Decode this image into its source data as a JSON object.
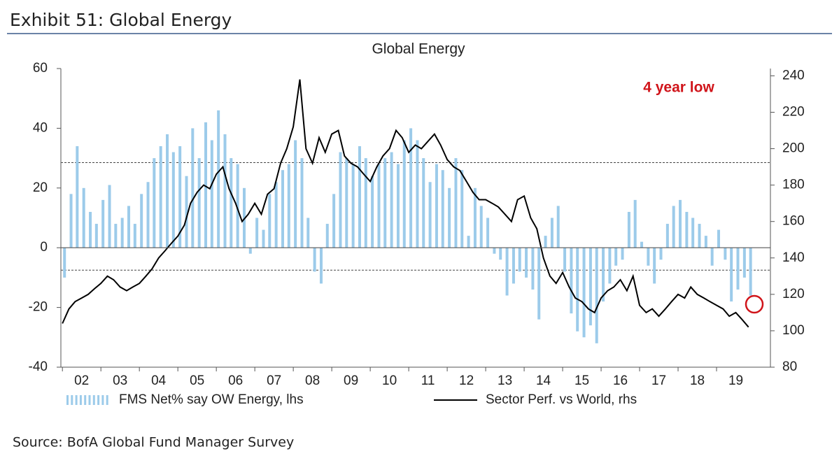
{
  "header": "Exhibit 51: Global Energy",
  "source": "Source: BofA Global Fund Manager Survey",
  "chart_data": {
    "type": "bar_line",
    "title": "Global Energy",
    "annotation": "4 year low",
    "xlim": [
      2001.96,
      2020.4
    ],
    "xticks": [
      {
        "value": 2002,
        "label": "02"
      },
      {
        "value": 2003,
        "label": "03"
      },
      {
        "value": 2004,
        "label": "04"
      },
      {
        "value": 2005,
        "label": "05"
      },
      {
        "value": 2006,
        "label": "06"
      },
      {
        "value": 2007,
        "label": "07"
      },
      {
        "value": 2008,
        "label": "08"
      },
      {
        "value": 2009,
        "label": "09"
      },
      {
        "value": 2010,
        "label": "10"
      },
      {
        "value": 2011,
        "label": "11"
      },
      {
        "value": 2012,
        "label": "12"
      },
      {
        "value": 2013,
        "label": "13"
      },
      {
        "value": 2014,
        "label": "14"
      },
      {
        "value": 2015,
        "label": "15"
      },
      {
        "value": 2016,
        "label": "16"
      },
      {
        "value": 2017,
        "label": "17"
      },
      {
        "value": 2018,
        "label": "18"
      },
      {
        "value": 2019,
        "label": "19"
      }
    ],
    "ylim": [
      -40,
      60
    ],
    "yticks": [
      -40,
      -20,
      0,
      20,
      40,
      60
    ],
    "y2lim": [
      80,
      244
    ],
    "y2ticks": [
      80,
      100,
      120,
      140,
      160,
      180,
      200,
      220,
      240
    ],
    "reference_lines": [
      28.5,
      -7.5
    ],
    "x": [
      2002,
      2002.17,
      2002.33,
      2002.5,
      2002.67,
      2002.83,
      2003,
      2003.17,
      2003.33,
      2003.5,
      2003.67,
      2003.83,
      2004,
      2004.17,
      2004.33,
      2004.5,
      2004.67,
      2004.83,
      2005,
      2005.17,
      2005.33,
      2005.5,
      2005.67,
      2005.83,
      2006,
      2006.17,
      2006.33,
      2006.5,
      2006.67,
      2006.83,
      2007,
      2007.17,
      2007.33,
      2007.5,
      2007.67,
      2007.83,
      2008,
      2008.17,
      2008.33,
      2008.5,
      2008.67,
      2008.83,
      2009,
      2009.17,
      2009.33,
      2009.5,
      2009.67,
      2009.83,
      2010,
      2010.17,
      2010.33,
      2010.5,
      2010.67,
      2010.83,
      2011,
      2011.17,
      2011.33,
      2011.5,
      2011.67,
      2011.83,
      2012,
      2012.17,
      2012.33,
      2012.5,
      2012.67,
      2012.83,
      2013,
      2013.17,
      2013.33,
      2013.5,
      2013.67,
      2013.83,
      2014,
      2014.17,
      2014.33,
      2014.5,
      2014.67,
      2014.83,
      2015,
      2015.17,
      2015.33,
      2015.5,
      2015.67,
      2015.83,
      2016,
      2016.17,
      2016.33,
      2016.5,
      2016.67,
      2016.83,
      2017,
      2017.17,
      2017.33,
      2017.5,
      2017.67,
      2017.83,
      2018,
      2018.17,
      2018.33,
      2018.5,
      2018.67,
      2018.83,
      2019,
      2019.17,
      2019.33,
      2019.5,
      2019.67,
      2019.83
    ],
    "series": [
      {
        "name": "FMS Net% say OW Energy, lhs",
        "kind": "bar",
        "color": "#9ccbea",
        "values": [
          -10,
          18,
          34,
          20,
          12,
          8,
          16,
          21,
          8,
          10,
          14,
          8,
          18,
          22,
          30,
          34,
          38,
          32,
          34,
          24,
          40,
          30,
          42,
          36,
          46,
          38,
          30,
          28,
          20,
          -2,
          10,
          6,
          18,
          22,
          26,
          28,
          36,
          30,
          10,
          -8,
          -12,
          8,
          18,
          32,
          30,
          28,
          34,
          30,
          24,
          28,
          30,
          32,
          28,
          36,
          40,
          36,
          30,
          22,
          28,
          26,
          20,
          30,
          26,
          4,
          20,
          14,
          10,
          -2,
          -4,
          -16,
          -12,
          -8,
          -10,
          -14,
          -24,
          4,
          10,
          14,
          -8,
          -22,
          -28,
          -30,
          -26,
          -32,
          -18,
          -12,
          -6,
          -4,
          12,
          16,
          2,
          -6,
          -12,
          -4,
          8,
          14,
          16,
          12,
          10,
          8,
          4,
          -6,
          6,
          -4,
          -18,
          -14,
          -10,
          -16
        ]
      },
      {
        "name": "Sector Perf. vs World, rhs",
        "kind": "line",
        "axis": "y2",
        "color": "#000000",
        "values": [
          104,
          112,
          116,
          118,
          120,
          123,
          126,
          130,
          128,
          124,
          122,
          124,
          126,
          130,
          134,
          140,
          144,
          148,
          152,
          158,
          170,
          176,
          180,
          178,
          186,
          190,
          178,
          170,
          160,
          164,
          170,
          164,
          175,
          178,
          192,
          200,
          212,
          238,
          200,
          192,
          206,
          198,
          208,
          210,
          196,
          192,
          190,
          186,
          182,
          190,
          196,
          200,
          210,
          206,
          198,
          202,
          200,
          204,
          208,
          202,
          194,
          190,
          188,
          182,
          176,
          172,
          172,
          170,
          168,
          164,
          160,
          172,
          174,
          162,
          156,
          140,
          130,
          126,
          132,
          124,
          118,
          116,
          112,
          110,
          118,
          122,
          124,
          128,
          122,
          130,
          114,
          110,
          112,
          108,
          112,
          116,
          120,
          118,
          124,
          120,
          118,
          116,
          114,
          112,
          108,
          110,
          106,
          102
        ]
      }
    ]
  }
}
